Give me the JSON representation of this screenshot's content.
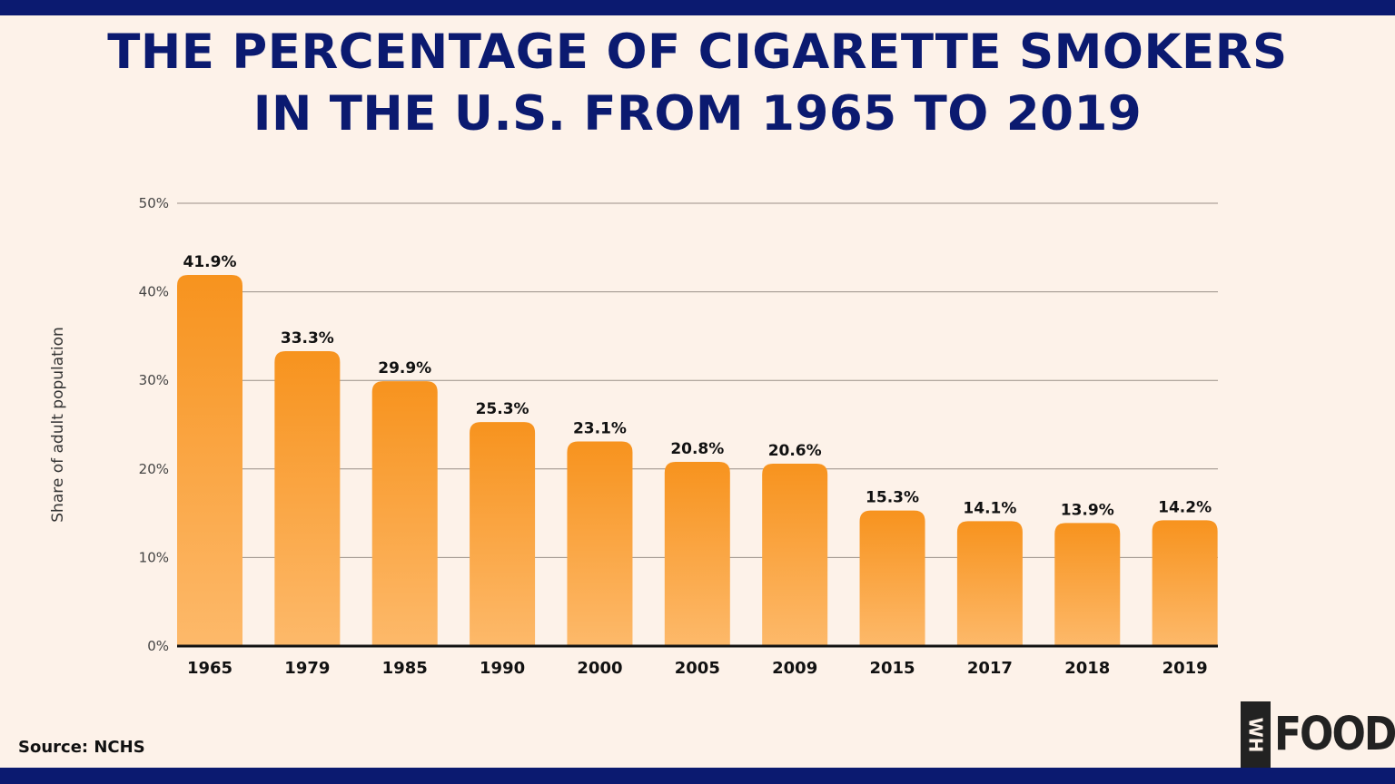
{
  "title_lines": [
    "THE PERCENTAGE OF CIGARETTE SMOKERS",
    "IN THE U.S. FROM 1965 TO 2019"
  ],
  "source": "Source: NCHS",
  "logo": {
    "text": "WH FOODS"
  },
  "colors": {
    "navy": "#0b1a70",
    "bar_top": "#f7931e",
    "bar_bottom": "#fdb96a",
    "background": "#fdf2e9"
  },
  "chart_data": {
    "type": "bar",
    "title": "THE PERCENTAGE OF CIGARETTE SMOKERS IN THE U.S. FROM 1965 TO 2019",
    "xlabel": "",
    "ylabel": "Share of adult population",
    "ylim": [
      0,
      50
    ],
    "yticks": [
      "0%",
      "10%",
      "20%",
      "30%",
      "40%",
      "50%"
    ],
    "grid": true,
    "categories": [
      "1965",
      "1979",
      "1985",
      "1990",
      "2000",
      "2005",
      "2009",
      "2015",
      "2017",
      "2018",
      "2019"
    ],
    "values": [
      41.9,
      33.3,
      29.9,
      25.3,
      23.1,
      20.8,
      20.6,
      15.3,
      14.1,
      13.9,
      14.2
    ],
    "data_labels": [
      "41.9%",
      "33.3%",
      "29.9%",
      "25.3%",
      "23.1%",
      "20.8%",
      "20.6%",
      "15.3%",
      "14.1%",
      "13.9%",
      "14.2%"
    ]
  }
}
